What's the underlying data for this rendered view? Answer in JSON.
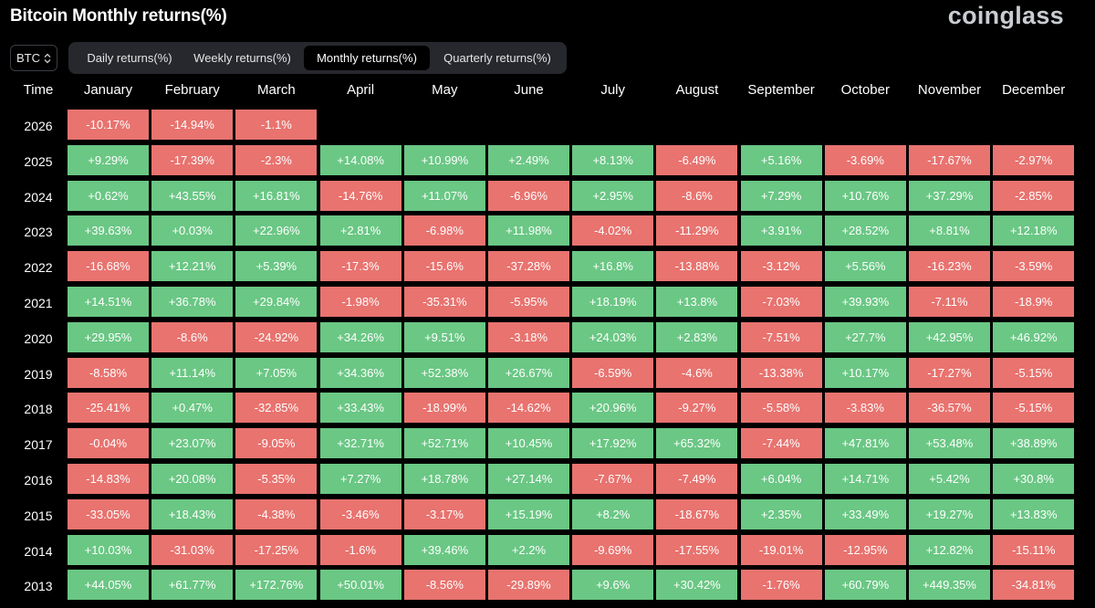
{
  "header": {
    "title": "Bitcoin Monthly returns(%)",
    "brand": "coinglass"
  },
  "asset_selector": {
    "value": "BTC",
    "icon": "chevron-up-down-icon"
  },
  "tabs": [
    {
      "label": "Daily returns(%)",
      "active": false
    },
    {
      "label": "Weekly returns(%)",
      "active": false
    },
    {
      "label": "Monthly returns(%)",
      "active": true
    },
    {
      "label": "Quarterly returns(%)",
      "active": false
    }
  ],
  "colors": {
    "positive": "#6ac784",
    "negative": "#e8736f",
    "background": "#000000"
  },
  "chart_data": {
    "type": "heatmap",
    "title": "Bitcoin Monthly returns(%)",
    "row_header": "Time",
    "columns": [
      "January",
      "February",
      "March",
      "April",
      "May",
      "June",
      "July",
      "August",
      "September",
      "October",
      "November",
      "December"
    ],
    "rows": [
      {
        "year": "2026",
        "values": [
          "-10.17%",
          "-14.94%",
          "-1.1%"
        ]
      },
      {
        "year": "2025",
        "values": [
          "+9.29%",
          "-17.39%",
          "-2.3%",
          "+14.08%",
          "+10.99%",
          "+2.49%",
          "+8.13%",
          "-6.49%",
          "+5.16%",
          "-3.69%",
          "-17.67%",
          "-2.97%"
        ]
      },
      {
        "year": "2024",
        "values": [
          "+0.62%",
          "+43.55%",
          "+16.81%",
          "-14.76%",
          "+11.07%",
          "-6.96%",
          "+2.95%",
          "-8.6%",
          "+7.29%",
          "+10.76%",
          "+37.29%",
          "-2.85%"
        ]
      },
      {
        "year": "2023",
        "values": [
          "+39.63%",
          "+0.03%",
          "+22.96%",
          "+2.81%",
          "-6.98%",
          "+11.98%",
          "-4.02%",
          "-11.29%",
          "+3.91%",
          "+28.52%",
          "+8.81%",
          "+12.18%"
        ]
      },
      {
        "year": "2022",
        "values": [
          "-16.68%",
          "+12.21%",
          "+5.39%",
          "-17.3%",
          "-15.6%",
          "-37.28%",
          "+16.8%",
          "-13.88%",
          "-3.12%",
          "+5.56%",
          "-16.23%",
          "-3.59%"
        ]
      },
      {
        "year": "2021",
        "values": [
          "+14.51%",
          "+36.78%",
          "+29.84%",
          "-1.98%",
          "-35.31%",
          "-5.95%",
          "+18.19%",
          "+13.8%",
          "-7.03%",
          "+39.93%",
          "-7.11%",
          "-18.9%"
        ]
      },
      {
        "year": "2020",
        "values": [
          "+29.95%",
          "-8.6%",
          "-24.92%",
          "+34.26%",
          "+9.51%",
          "-3.18%",
          "+24.03%",
          "+2.83%",
          "-7.51%",
          "+27.7%",
          "+42.95%",
          "+46.92%"
        ]
      },
      {
        "year": "2019",
        "values": [
          "-8.58%",
          "+11.14%",
          "+7.05%",
          "+34.36%",
          "+52.38%",
          "+26.67%",
          "-6.59%",
          "-4.6%",
          "-13.38%",
          "+10.17%",
          "-17.27%",
          "-5.15%"
        ]
      },
      {
        "year": "2018",
        "values": [
          "-25.41%",
          "+0.47%",
          "-32.85%",
          "+33.43%",
          "-18.99%",
          "-14.62%",
          "+20.96%",
          "-9.27%",
          "-5.58%",
          "-3.83%",
          "-36.57%",
          "-5.15%"
        ]
      },
      {
        "year": "2017",
        "values": [
          "-0.04%",
          "+23.07%",
          "-9.05%",
          "+32.71%",
          "+52.71%",
          "+10.45%",
          "+17.92%",
          "+65.32%",
          "-7.44%",
          "+47.81%",
          "+53.48%",
          "+38.89%"
        ]
      },
      {
        "year": "2016",
        "values": [
          "-14.83%",
          "+20.08%",
          "-5.35%",
          "+7.27%",
          "+18.78%",
          "+27.14%",
          "-7.67%",
          "-7.49%",
          "+6.04%",
          "+14.71%",
          "+5.42%",
          "+30.8%"
        ]
      },
      {
        "year": "2015",
        "values": [
          "-33.05%",
          "+18.43%",
          "-4.38%",
          "-3.46%",
          "-3.17%",
          "+15.19%",
          "+8.2%",
          "-18.67%",
          "+2.35%",
          "+33.49%",
          "+19.27%",
          "+13.83%"
        ]
      },
      {
        "year": "2014",
        "values": [
          "+10.03%",
          "-31.03%",
          "-17.25%",
          "-1.6%",
          "+39.46%",
          "+2.2%",
          "-9.69%",
          "-17.55%",
          "-19.01%",
          "-12.95%",
          "+12.82%",
          "-15.11%"
        ]
      },
      {
        "year": "2013",
        "values": [
          "+44.05%",
          "+61.77%",
          "+172.76%",
          "+50.01%",
          "-8.56%",
          "-29.89%",
          "+9.6%",
          "+30.42%",
          "-1.76%",
          "+60.79%",
          "+449.35%",
          "-34.81%"
        ]
      }
    ]
  }
}
